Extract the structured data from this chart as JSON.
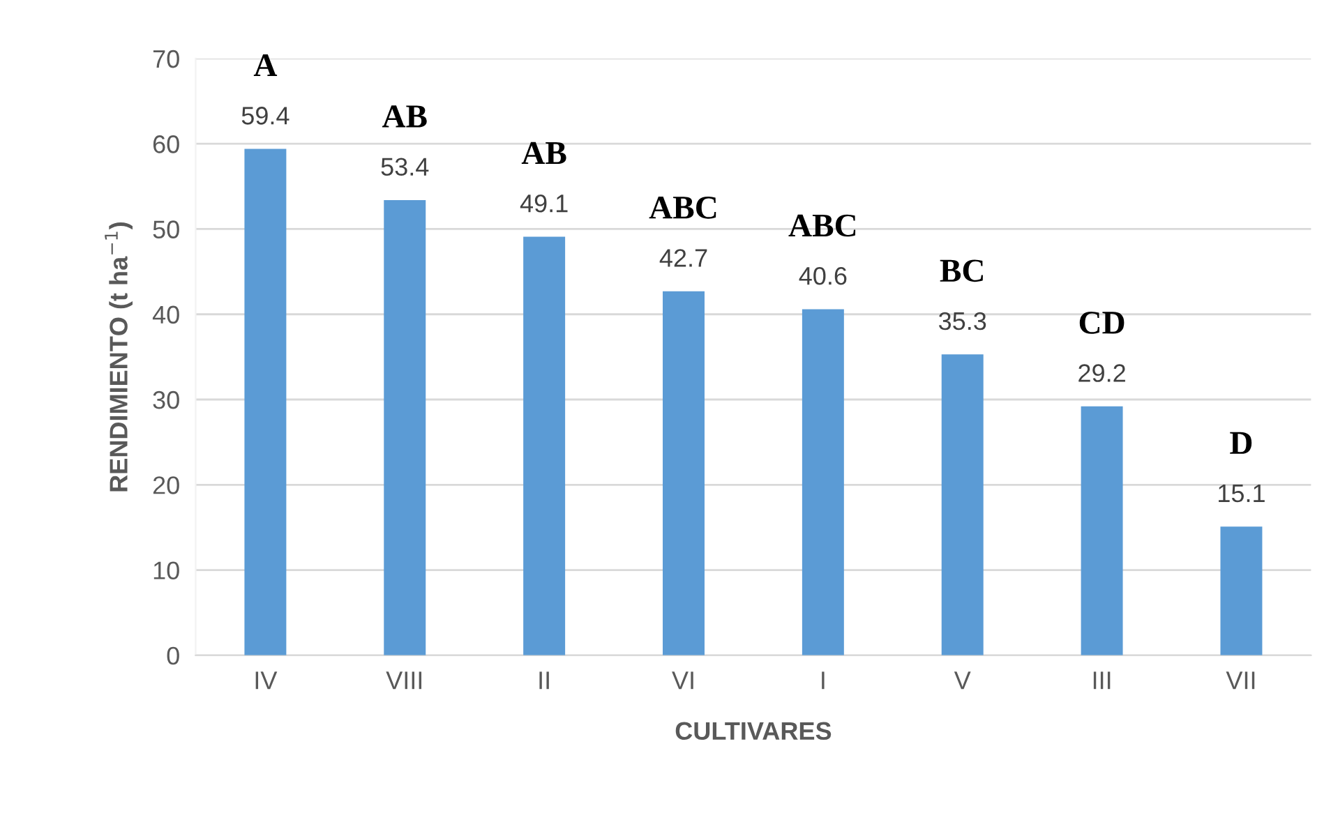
{
  "chart_data": {
    "type": "bar",
    "xlabel": "CULTIVARES",
    "ylabel": "RENDIMIENTO (t ha$^{−1}$)",
    "categories": [
      "IV",
      "VIII",
      "II",
      "VI",
      "I",
      "V",
      "III",
      "VII"
    ],
    "values": [
      59.4,
      53.4,
      49.1,
      42.7,
      40.6,
      35.3,
      29.2,
      15.1
    ],
    "color": "#5b9bd5",
    "ylim": [
      0,
      70
    ],
    "yticks": [
      0,
      10,
      20,
      30,
      40,
      50,
      60,
      70
    ],
    "grid": "y",
    "data_labels": true,
    "annotations": [
      {
        "text": "A",
        "x": "IV",
        "y": 59.4
      },
      {
        "text": "AB",
        "x": "VIII",
        "y": 53.4
      },
      {
        "text": "AB",
        "x": "II",
        "y": 49.1
      },
      {
        "text": "ABC",
        "x": "VI",
        "y": 42.7
      },
      {
        "text": "ABC",
        "x": "I",
        "y": 40.6
      },
      {
        "text": "BC",
        "x": "V",
        "y": 35.3
      },
      {
        "text": "CD",
        "x": "III",
        "y": 29.2
      },
      {
        "text": "D",
        "x": "VII",
        "y": 15.1
      }
    ]
  }
}
